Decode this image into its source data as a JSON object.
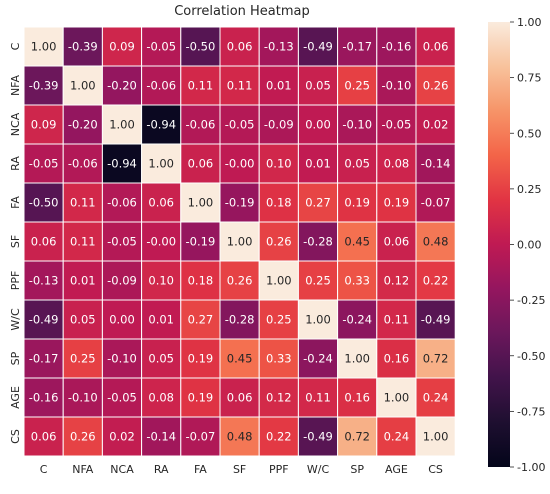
{
  "chart_data": {
    "type": "heatmap",
    "title": "Correlation Heatmap",
    "categories": [
      "C",
      "NFA",
      "NCA",
      "RA",
      "FA",
      "SF",
      "PPF",
      "W/C",
      "SP",
      "AGE",
      "CS"
    ],
    "values": [
      [
        "1.00",
        "-0.39",
        "0.09",
        "-0.05",
        "-0.50",
        "0.06",
        "-0.13",
        "-0.49",
        "-0.17",
        "-0.16",
        "0.06"
      ],
      [
        "-0.39",
        "1.00",
        "-0.20",
        "-0.06",
        "0.11",
        "0.11",
        "0.01",
        "0.05",
        "0.25",
        "-0.10",
        "0.26"
      ],
      [
        "0.09",
        "-0.20",
        "1.00",
        "-0.94",
        "-0.06",
        "-0.05",
        "-0.09",
        "0.00",
        "-0.10",
        "-0.05",
        "0.02"
      ],
      [
        "-0.05",
        "-0.06",
        "-0.94",
        "1.00",
        "0.06",
        "-0.00",
        "0.10",
        "0.01",
        "0.05",
        "0.08",
        "-0.14"
      ],
      [
        "-0.50",
        "0.11",
        "-0.06",
        "0.06",
        "1.00",
        "-0.19",
        "0.18",
        "0.27",
        "0.19",
        "0.19",
        "-0.07"
      ],
      [
        "0.06",
        "0.11",
        "-0.05",
        "-0.00",
        "-0.19",
        "1.00",
        "0.26",
        "-0.28",
        "0.45",
        "0.06",
        "0.48"
      ],
      [
        "-0.13",
        "0.01",
        "-0.09",
        "0.10",
        "0.18",
        "0.26",
        "1.00",
        "0.25",
        "0.33",
        "0.12",
        "0.22"
      ],
      [
        "-0.49",
        "0.05",
        "0.00",
        "0.01",
        "0.27",
        "-0.28",
        "0.25",
        "1.00",
        "-0.24",
        "0.11",
        "-0.49"
      ],
      [
        "-0.17",
        "0.25",
        "-0.10",
        "0.05",
        "0.19",
        "0.45",
        "0.33",
        "-0.24",
        "1.00",
        "0.16",
        "0.72"
      ],
      [
        "-0.16",
        "-0.10",
        "-0.05",
        "0.08",
        "0.19",
        "0.06",
        "0.12",
        "0.11",
        "0.16",
        "1.00",
        "0.24"
      ],
      [
        "0.06",
        "0.26",
        "0.02",
        "-0.14",
        "-0.07",
        "0.48",
        "0.22",
        "-0.49",
        "0.72",
        "0.24",
        "1.00"
      ]
    ],
    "value_range": [
      -1.0,
      1.0
    ],
    "colormap": "rocket",
    "colorbar_ticks": [
      "1.00",
      "0.75",
      "0.50",
      "0.25",
      "0.00",
      "-0.25",
      "-0.50",
      "-0.75",
      "-1.00"
    ],
    "colorbar_tick_values": [
      1.0,
      0.75,
      0.5,
      0.25,
      0.0,
      -0.25,
      -0.5,
      -0.75,
      -1.0
    ],
    "colorbar_position": "right",
    "grid": false
  }
}
